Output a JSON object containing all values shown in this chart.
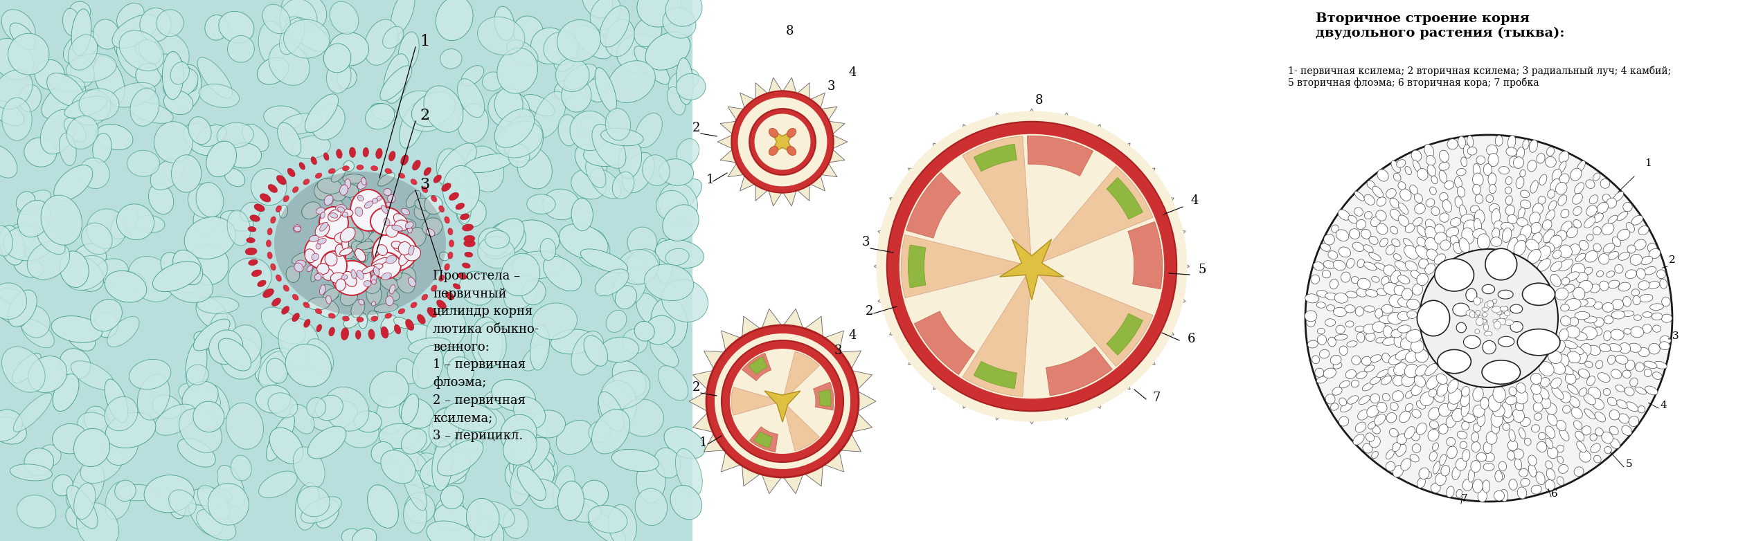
{
  "bg_color": "#ffffff",
  "fig_width": 25.2,
  "fig_height": 7.82,
  "photo_bg": "#b8dede",
  "label_text": "Протостела –\nпервичный\nцилиндр корня\nлютика обыкно-\nвенного:\n1 – первичная\nфлоэма;\n2 – первичная\nксилема;\n3 – перицикл.",
  "right_title_bold": "Вторичное строение корня\nдвудольного растения (тыква):",
  "right_title_normal": "1- первичная ксилема; 2 вторичная ксилема; 3 радиальный луч; 4 камбий;\n5 вторичная флоэма; 6 вторичная кора; 7 пробка",
  "colors": {
    "outer_ring": "#cc3030",
    "cream": "#f8f0d8",
    "xylem_yellow": "#e0c040",
    "phloem_salmon": "#e08070",
    "green_patch": "#90b840",
    "spike_bg": "#f4ecd0",
    "cell_teal": "#c8e8e6",
    "cell_border_teal": "#3a9a7a",
    "endo_red": "#cc2233",
    "xylem_vessel": "#f5f5fa"
  }
}
